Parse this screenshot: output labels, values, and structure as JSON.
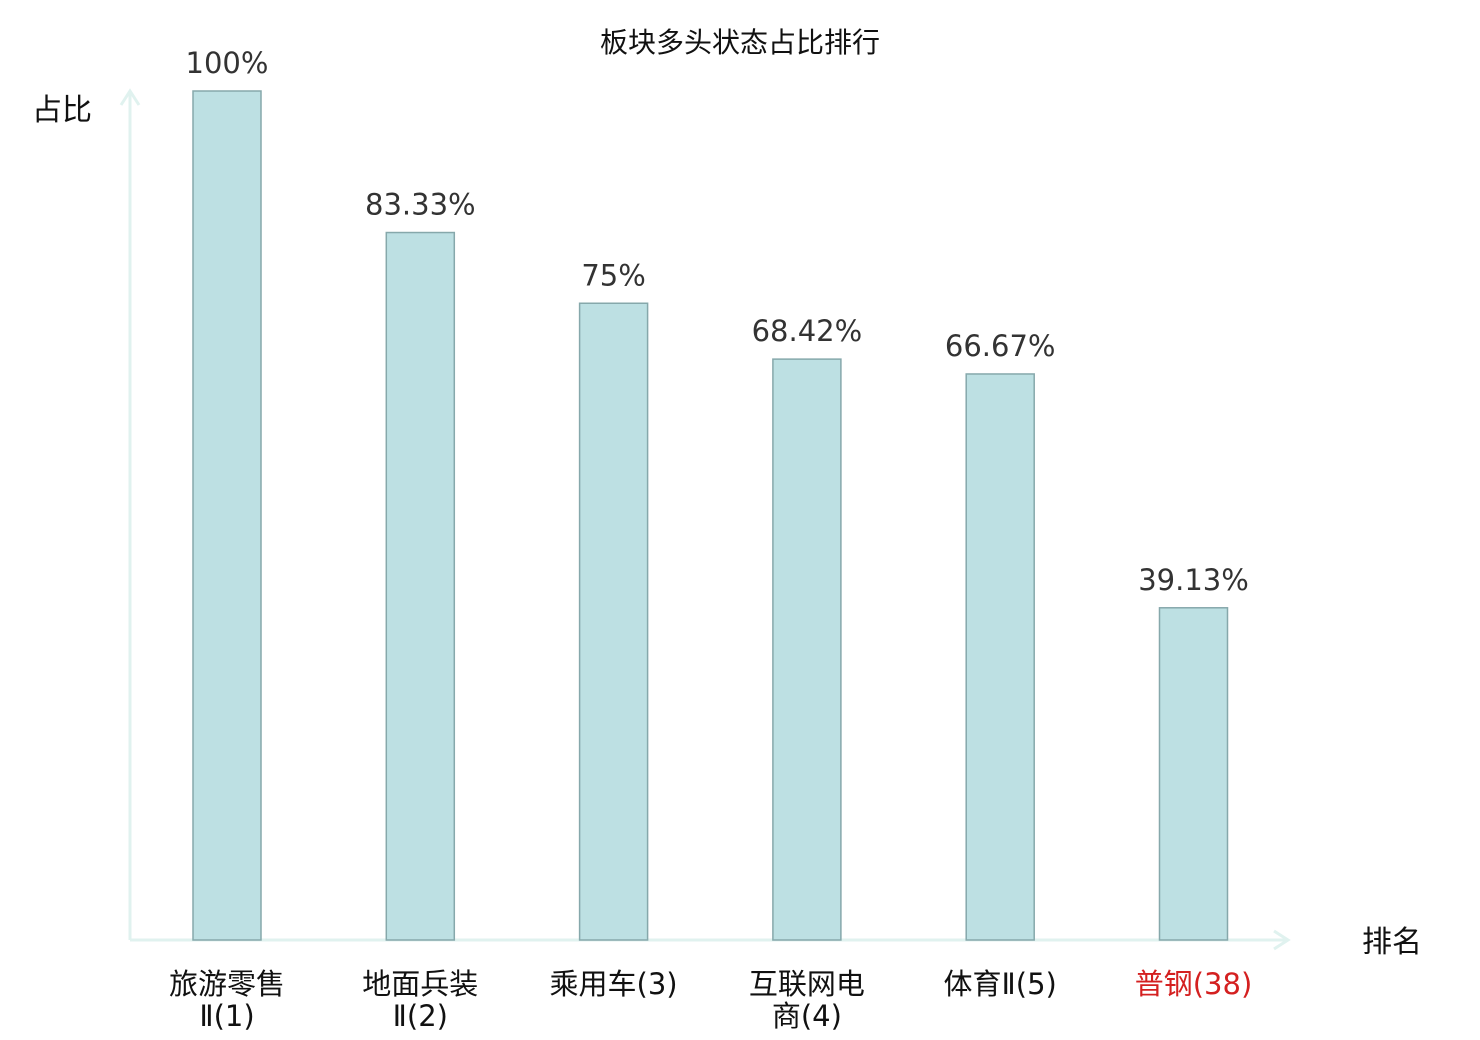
{
  "chart_data": {
    "type": "bar",
    "title": "板块多头状态占比排行",
    "ylabel": "占比",
    "xlabel": "排名",
    "ylim": [
      0,
      100
    ],
    "grid": false,
    "categories": [
      {
        "name_lines": [
          "旅游零售",
          "Ⅱ(1)"
        ],
        "highlight": false
      },
      {
        "name_lines": [
          "地面兵装",
          "Ⅱ(2)"
        ],
        "highlight": false
      },
      {
        "name_lines": [
          "乘用车(3)"
        ],
        "highlight": false
      },
      {
        "name_lines": [
          "互联网电",
          "商(4)"
        ],
        "highlight": false
      },
      {
        "name_lines": [
          "体育Ⅱ(5)"
        ],
        "highlight": false
      },
      {
        "name_lines": [
          "普钢(38)"
        ],
        "highlight": true
      }
    ],
    "values": [
      100,
      83.33,
      75,
      68.42,
      66.67,
      39.13
    ],
    "value_labels": [
      "100%",
      "83.33%",
      "75%",
      "68.42%",
      "66.67%",
      "39.13%"
    ],
    "colors": {
      "bar_fill": "#bde0e3",
      "bar_stroke": "#86a8ab",
      "axis": "#e0f2ef",
      "highlight_text": "#d42020"
    }
  }
}
